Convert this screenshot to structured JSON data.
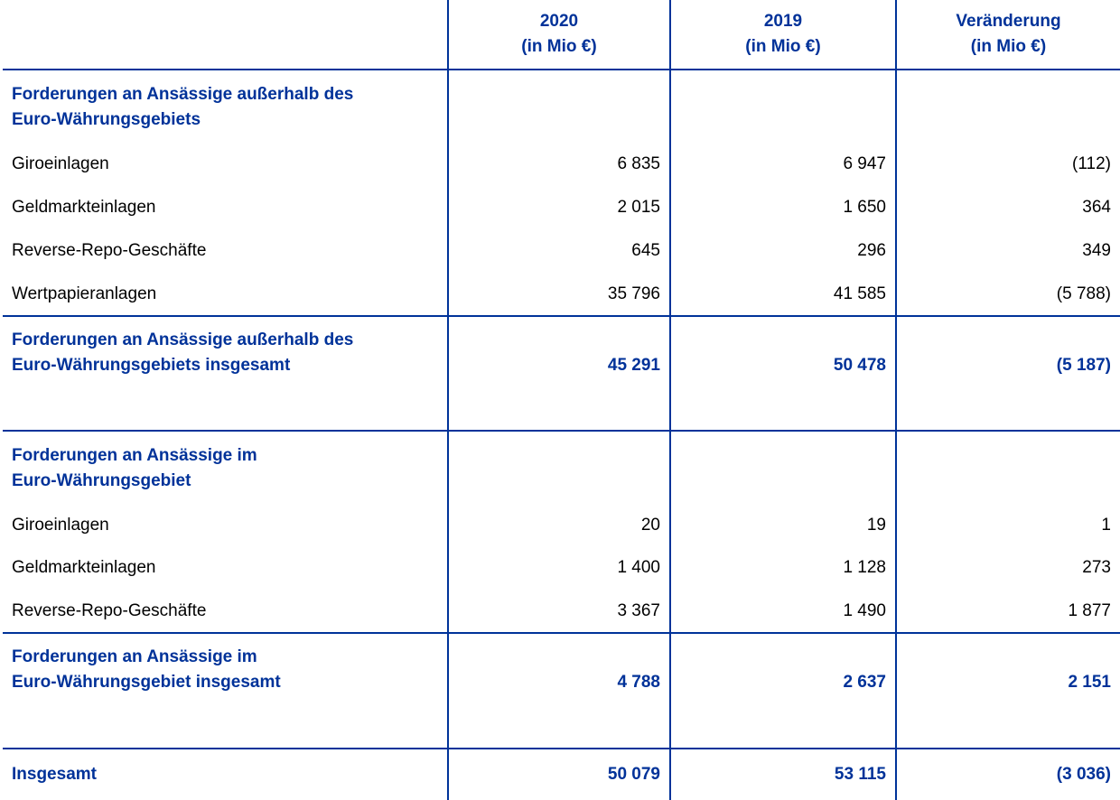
{
  "header": {
    "col_2020": "2020",
    "col_2019": "2019",
    "col_change": "Veränderung",
    "unit": "(in Mio €)"
  },
  "section1": {
    "heading_line1": "Forderungen an Ansässige außerhalb des",
    "heading_line2": "Euro-Währungsgebiets",
    "rows": [
      {
        "label": "Giroeinlagen",
        "v2020": "6 835",
        "v2019": "6 947",
        "change": "(112)"
      },
      {
        "label": "Geldmarkteinlagen",
        "v2020": "2 015",
        "v2019": "1 650",
        "change": "364"
      },
      {
        "label": "Reverse-Repo-Geschäfte",
        "v2020": "645",
        "v2019": "296",
        "change": "349"
      },
      {
        "label": "Wertpapieranlagen",
        "v2020": "35 796",
        "v2019": "41 585",
        "change": "(5 788)"
      }
    ],
    "total": {
      "label_line1": "Forderungen an Ansässige außerhalb des",
      "label_line2": "Euro-Währungsgebiets insgesamt",
      "v2020": "45 291",
      "v2019": "50 478",
      "change": "(5 187)"
    }
  },
  "section2": {
    "heading_line1": "Forderungen an Ansässige im",
    "heading_line2": "Euro-Währungsgebiet",
    "rows": [
      {
        "label": "Giroeinlagen",
        "v2020": "20",
        "v2019": "19",
        "change": "1"
      },
      {
        "label": "Geldmarkteinlagen",
        "v2020": "1 400",
        "v2019": "1 128",
        "change": "273"
      },
      {
        "label": "Reverse-Repo-Geschäfte",
        "v2020": "3 367",
        "v2019": "1 490",
        "change": "1 877"
      }
    ],
    "total": {
      "label_line1": "Forderungen an Ansässige im",
      "label_line2": "Euro-Währungsgebiet insgesamt",
      "v2020": "4 788",
      "v2019": "2 637",
      "change": "2 151"
    }
  },
  "grand_total": {
    "label": "Insgesamt",
    "v2020": "50 079",
    "v2019": "53 115",
    "change": "(3 036)"
  },
  "colors": {
    "accent": "#003299"
  }
}
